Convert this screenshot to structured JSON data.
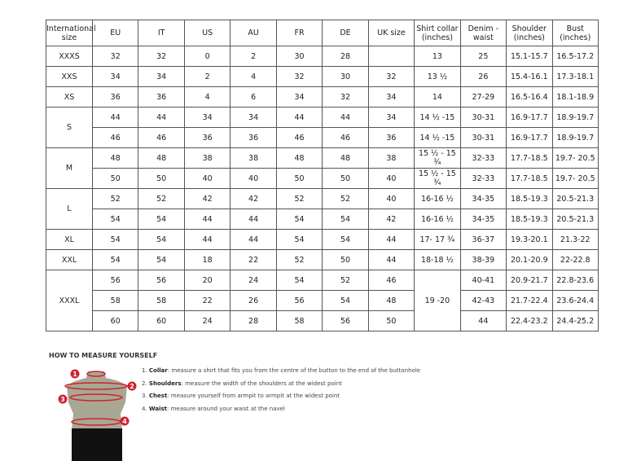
{
  "headers": [
    "International size",
    "EU",
    "IT",
    "US",
    "AU",
    "FR",
    "DE",
    "UK size",
    "Shirt collar (inches)",
    "Denim - waist",
    "Shoulder (inches)",
    "Bust (inches)"
  ],
  "groups": [
    {
      "size": "XXXS",
      "rows": [
        [
          "32",
          "32",
          "0",
          "2",
          "30",
          "28",
          "",
          "13",
          "25",
          "15.1-15.7",
          "16.5-17.2"
        ]
      ]
    },
    {
      "size": "XXS",
      "rows": [
        [
          "34",
          "34",
          "2",
          "4",
          "32",
          "30",
          "32",
          "13 ½",
          "26",
          "15.4-16.1",
          "17.3-18.1"
        ]
      ]
    },
    {
      "size": "XS",
      "rows": [
        [
          "36",
          "36",
          "4",
          "6",
          "34",
          "32",
          "34",
          "14",
          "27-29",
          "16.5-16.4",
          "18.1-18.9"
        ]
      ]
    },
    {
      "size": "S",
      "rows": [
        [
          "44",
          "44",
          "34",
          "34",
          "44",
          "44",
          "34",
          "14 ½ -15",
          "30-31",
          "16.9-17.7",
          "18.9-19.7"
        ],
        [
          "46",
          "46",
          "36",
          "36",
          "46",
          "46",
          "36",
          "14 ½ -15",
          "30-31",
          "16.9-17.7",
          "18.9-19.7"
        ]
      ]
    },
    {
      "size": "M",
      "rows": [
        [
          "48",
          "48",
          "38",
          "38",
          "48",
          "48",
          "38",
          "15 ½ - 15 ¾",
          "32-33",
          "17.7-18.5",
          "19.7- 20.5"
        ],
        [
          "50",
          "50",
          "40",
          "40",
          "50",
          "50",
          "40",
          "15 ½ - 15 ¾",
          "32-33",
          "17.7-18.5",
          "19.7- 20.5"
        ]
      ]
    },
    {
      "size": "L",
      "rows": [
        [
          "52",
          "52",
          "42",
          "42",
          "52",
          "52",
          "40",
          "16-16 ½",
          "34-35",
          "18.5-19.3",
          "20.5-21.3"
        ],
        [
          "54",
          "54",
          "44",
          "44",
          "54",
          "54",
          "42",
          "16-16 ½",
          "34-35",
          "18.5-19.3",
          "20.5-21.3"
        ]
      ]
    },
    {
      "size": "XL",
      "rows": [
        [
          "54",
          "54",
          "44",
          "44",
          "54",
          "54",
          "44",
          "17- 17 ¾",
          "36-37",
          "19.3-20.1",
          "21.3-22"
        ]
      ]
    },
    {
      "size": "XXL",
      "rows": [
        [
          "54",
          "54",
          "18",
          "22",
          "52",
          "50",
          "44",
          "18-18 ½",
          "38-39",
          "20.1-20.9",
          "22-22.8"
        ]
      ]
    },
    {
      "size": "XXXL",
      "collar": "19 -20",
      "rows": [
        [
          "56",
          "56",
          "20",
          "24",
          "54",
          "52",
          "46",
          null,
          "40-41",
          "20.9-21.7",
          "22.8-23.6"
        ],
        [
          "58",
          "58",
          "22",
          "26",
          "56",
          "54",
          "48",
          null,
          "42-43",
          "21.7-22.4",
          "23.6-24.4"
        ],
        [
          "60",
          "60",
          "24",
          "28",
          "58",
          "56",
          "50",
          null,
          "44",
          "22.4-23.2",
          "24.4-25.2"
        ]
      ]
    }
  ],
  "howto": {
    "title": "HOW TO MEASURE YOURSELF",
    "steps": [
      {
        "num": "1.",
        "term": "Collar",
        "text": ": measure a shirt that fits you from the centre of the button to the end of the buttonhole"
      },
      {
        "num": "2.",
        "term": "Shoulders",
        "text": ": measure the width of the shoulders at the widest point"
      },
      {
        "num": "3.",
        "term": "Chest",
        "text": ": measure yourself from armpit to armpit at the widest point"
      },
      {
        "num": "4.",
        "term": "Waist",
        "text": ": measure around your waist at the navel"
      }
    ],
    "markers": [
      "1",
      "2",
      "3",
      "4"
    ]
  },
  "colors": {
    "marker": "#d0212e",
    "torso": "#a8a793",
    "shorts": "#111111"
  }
}
